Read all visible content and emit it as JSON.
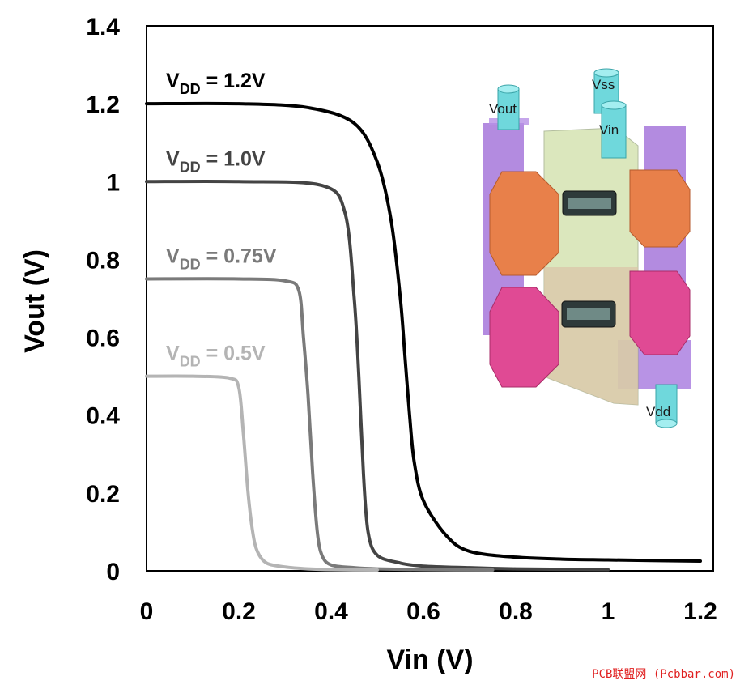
{
  "chart_data": {
    "type": "line",
    "title": "",
    "xlabel": "Vin (V)",
    "ylabel": "Vout (V)",
    "xlim": [
      0,
      1.2
    ],
    "ylim": [
      0,
      1.4
    ],
    "xticks": [
      "0",
      "0.2",
      "0.4",
      "0.6",
      "0.8",
      "1",
      "1.2"
    ],
    "yticks": [
      "0",
      "0.2",
      "0.4",
      "0.6",
      "0.8",
      "1",
      "1.2",
      "1.4"
    ],
    "grid": false,
    "legend": "inline-labels-left",
    "series": [
      {
        "label_main": "V",
        "label_sub": "DD",
        "label_rest": " = 1.2V",
        "vdd": 1.2,
        "color": "#000000",
        "x": [
          0,
          0.2,
          0.35,
          0.45,
          0.5,
          0.53,
          0.55,
          0.56,
          0.57,
          0.58,
          0.6,
          0.65,
          0.7,
          0.8,
          0.9,
          1.0,
          1.2
        ],
        "y": [
          1.2,
          1.2,
          1.19,
          1.15,
          1.05,
          0.9,
          0.7,
          0.55,
          0.4,
          0.28,
          0.18,
          0.09,
          0.05,
          0.035,
          0.03,
          0.028,
          0.025
        ]
      },
      {
        "label_main": "V",
        "label_sub": "DD",
        "label_rest": " = 1.0V",
        "vdd": 1.0,
        "color": "#444444",
        "x": [
          0,
          0.2,
          0.38,
          0.43,
          0.45,
          0.46,
          0.47,
          0.48,
          0.5,
          0.55,
          0.6,
          0.7,
          0.8,
          0.9,
          1.0
        ],
        "y": [
          1.0,
          1.0,
          0.99,
          0.92,
          0.7,
          0.5,
          0.25,
          0.1,
          0.04,
          0.02,
          0.012,
          0.008,
          0.005,
          0.004,
          0.003
        ]
      },
      {
        "label_main": "V",
        "label_sub": "DD",
        "label_rest": " = 0.75V",
        "vdd": 0.75,
        "color": "#7a7a7a",
        "x": [
          0,
          0.2,
          0.3,
          0.33,
          0.34,
          0.35,
          0.36,
          0.37,
          0.38,
          0.4,
          0.45,
          0.5,
          0.6,
          0.75
        ],
        "y": [
          0.75,
          0.75,
          0.745,
          0.72,
          0.6,
          0.45,
          0.25,
          0.1,
          0.04,
          0.015,
          0.008,
          0.005,
          0.003,
          0.002
        ]
      },
      {
        "label_main": "V",
        "label_sub": "DD",
        "label_rest": " = 0.5V",
        "vdd": 0.5,
        "color": "#b4b4b4",
        "x": [
          0,
          0.1,
          0.18,
          0.2,
          0.21,
          0.22,
          0.23,
          0.24,
          0.26,
          0.3,
          0.35,
          0.4,
          0.5
        ],
        "y": [
          0.5,
          0.5,
          0.495,
          0.47,
          0.35,
          0.2,
          0.1,
          0.05,
          0.02,
          0.01,
          0.005,
          0.003,
          0.002
        ]
      }
    ]
  },
  "inset": {
    "labels": {
      "vout": "Vout",
      "vss": "Vss",
      "vin": "Vin",
      "vdd": "Vdd"
    }
  },
  "watermark": "PCB联盟网 (Pcbbar.com)"
}
